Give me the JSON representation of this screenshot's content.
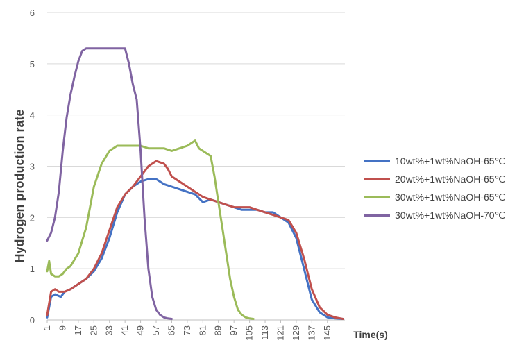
{
  "chart_data": {
    "type": "line",
    "ylabel": "Hydrogen production rate",
    "xlabel": "Time(s)",
    "ylim": [
      0,
      6
    ],
    "xlim": [
      1,
      154
    ],
    "yticks": [
      "0",
      "1",
      "2",
      "3",
      "4",
      "5",
      "6"
    ],
    "xticks": [
      "1",
      "9",
      "17",
      "25",
      "33",
      "41",
      "49",
      "57",
      "65",
      "73",
      "81",
      "89",
      "97",
      "105",
      "113",
      "121",
      "129",
      "137",
      "145"
    ],
    "grid": "horizontal",
    "legend_position": "right",
    "series": [
      {
        "name": "10wt%+1wt%NaOH-65℃",
        "color": "#4472C4",
        "x": [
          1,
          3,
          5,
          8,
          10,
          13,
          17,
          21,
          25,
          29,
          33,
          37,
          41,
          45,
          49,
          53,
          57,
          61,
          65,
          69,
          73,
          77,
          81,
          85,
          89,
          93,
          97,
          101,
          105,
          109,
          113,
          117,
          121,
          125,
          129,
          133,
          137,
          141,
          145,
          149,
          153
        ],
        "y": [
          0.05,
          0.45,
          0.5,
          0.45,
          0.55,
          0.6,
          0.7,
          0.8,
          0.95,
          1.2,
          1.6,
          2.1,
          2.45,
          2.6,
          2.7,
          2.75,
          2.75,
          2.65,
          2.6,
          2.55,
          2.5,
          2.45,
          2.3,
          2.35,
          2.3,
          2.25,
          2.2,
          2.15,
          2.15,
          2.15,
          2.1,
          2.1,
          2.0,
          1.9,
          1.6,
          1.0,
          0.4,
          0.15,
          0.05,
          0.03,
          0.02
        ]
      },
      {
        "name": "20wt%+1wt%NaOH-65℃",
        "color": "#C0504D",
        "x": [
          1,
          3,
          5,
          7,
          10,
          13,
          17,
          21,
          25,
          29,
          33,
          37,
          41,
          45,
          49,
          53,
          57,
          61,
          63,
          65,
          69,
          73,
          77,
          81,
          85,
          89,
          93,
          97,
          101,
          105,
          109,
          113,
          117,
          121,
          125,
          129,
          133,
          137,
          141,
          145,
          149,
          153
        ],
        "y": [
          0.1,
          0.55,
          0.6,
          0.55,
          0.55,
          0.6,
          0.7,
          0.8,
          1.0,
          1.3,
          1.75,
          2.2,
          2.45,
          2.6,
          2.8,
          3.0,
          3.1,
          3.05,
          2.95,
          2.8,
          2.7,
          2.6,
          2.5,
          2.4,
          2.35,
          2.3,
          2.25,
          2.2,
          2.2,
          2.2,
          2.15,
          2.1,
          2.05,
          2.0,
          1.95,
          1.7,
          1.2,
          0.6,
          0.25,
          0.1,
          0.05,
          0.02
        ]
      },
      {
        "name": "30wt%+1wt%NaOH-65℃",
        "color": "#9BBB59",
        "x": [
          1,
          2,
          3,
          5,
          7,
          9,
          11,
          13,
          17,
          21,
          25,
          29,
          33,
          37,
          41,
          45,
          49,
          53,
          57,
          61,
          65,
          69,
          73,
          77,
          79,
          81,
          85,
          87,
          89,
          91,
          93,
          95,
          97,
          99,
          101,
          103,
          105,
          107
        ],
        "y": [
          0.95,
          1.15,
          0.9,
          0.85,
          0.85,
          0.9,
          1.0,
          1.05,
          1.3,
          1.8,
          2.6,
          3.05,
          3.3,
          3.4,
          3.4,
          3.4,
          3.4,
          3.35,
          3.35,
          3.35,
          3.3,
          3.35,
          3.4,
          3.5,
          3.35,
          3.3,
          3.2,
          2.8,
          2.3,
          1.8,
          1.3,
          0.8,
          0.45,
          0.2,
          0.1,
          0.05,
          0.03,
          0.02
        ]
      },
      {
        "name": "30wt%+1wt%NaOH-70℃",
        "color": "#8064A2",
        "x": [
          1,
          3,
          5,
          7,
          9,
          11,
          13,
          15,
          17,
          19,
          21,
          23,
          25,
          29,
          33,
          37,
          41,
          43,
          45,
          47,
          49,
          51,
          53,
          55,
          57,
          59,
          61,
          63,
          65
        ],
        "y": [
          1.55,
          1.7,
          2.0,
          2.5,
          3.3,
          3.95,
          4.4,
          4.75,
          5.05,
          5.25,
          5.3,
          5.3,
          5.3,
          5.3,
          5.3,
          5.3,
          5.3,
          5.0,
          4.6,
          4.3,
          3.3,
          2.0,
          1.0,
          0.45,
          0.2,
          0.1,
          0.05,
          0.03,
          0.02
        ]
      }
    ]
  }
}
